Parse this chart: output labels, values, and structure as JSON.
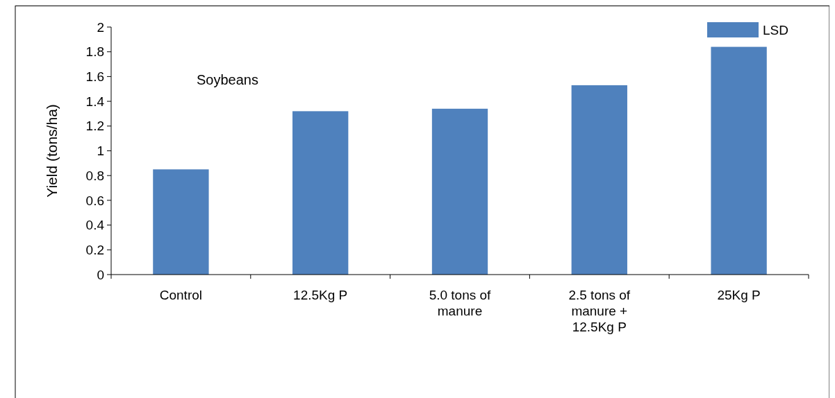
{
  "chart_data": {
    "type": "bar",
    "ylabel": "Yield (tons/ha)",
    "annotations": [
      "Soybeans"
    ],
    "categories": [
      "Control",
      "12.5Kg P",
      "5.0 tons of manure",
      "2.5 tons of manure + 12.5Kg P",
      "25Kg P"
    ],
    "series": [
      {
        "name": "LSD",
        "color": "#4f81bd",
        "values": [
          0.85,
          1.32,
          1.34,
          1.53,
          1.84
        ]
      }
    ],
    "ylim": [
      0,
      2
    ],
    "yticks": [
      0,
      0.2,
      0.4,
      0.6,
      0.8,
      1,
      1.2,
      1.4,
      1.6,
      1.8,
      2
    ],
    "grid": false,
    "legend": "top right"
  }
}
